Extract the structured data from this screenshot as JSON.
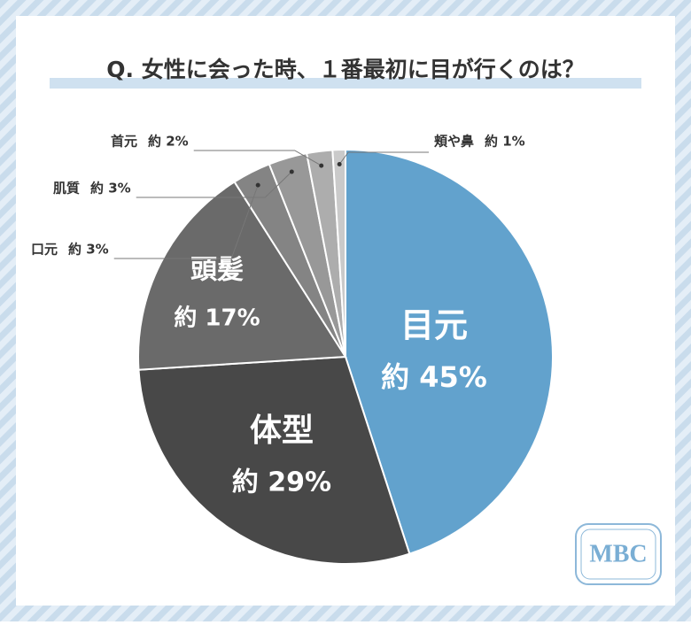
{
  "chart_data": {
    "type": "pie",
    "title": "Q. 女性に会った時、１番最初に目が行くのは？",
    "categories": [
      "目元",
      "体型",
      "頭髪",
      "口元",
      "肌質",
      "首元",
      "頬や鼻"
    ],
    "values": [
      45,
      29,
      17,
      3,
      3,
      2,
      1
    ],
    "value_labels": [
      "約 45%",
      "約 29%",
      "約 17%",
      "約 3%",
      "約 3%",
      "約 2%",
      "約 1%"
    ],
    "colors": [
      "#62a2cd",
      "#484848",
      "#6a6a6a",
      "#848484",
      "#989898",
      "#adadad",
      "#cacaca"
    ],
    "logo": "MBC"
  }
}
